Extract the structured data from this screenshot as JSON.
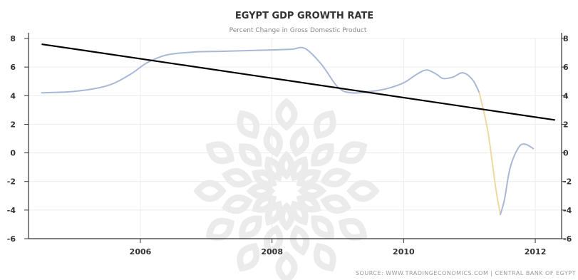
{
  "chart_data": {
    "type": "line",
    "title": "EGYPT GDP GROWTH RATE",
    "subtitle": "Percent Change in Gross Domestic Product",
    "source": "SOURCE: WWW.TRADINGECONOMICS.COM | CENTRAL BANK OF EGYPT",
    "xlim": [
      2004.3,
      2012.4
    ],
    "ylim": [
      -6,
      8
    ],
    "y_ticks": [
      8,
      6,
      4,
      2,
      0,
      -2,
      -4,
      -6
    ],
    "y_tick_labels": [
      "8",
      "6",
      "4",
      "2",
      "0",
      "-2",
      "-4",
      "-6"
    ],
    "y_tick_labels_right": [
      "8",
      "6",
      "4",
      "2",
      "0",
      "-2",
      "-4",
      "-6"
    ],
    "x_ticks": [
      2006,
      2008,
      2010,
      2012
    ],
    "x_tick_labels": [
      "2006",
      "2008",
      "2010",
      "2012"
    ],
    "grid": true,
    "series": [
      {
        "color": "#a9b8d6",
        "x": [
          2004.5,
          2005.0,
          2005.5,
          2005.85,
          2006.1,
          2006.4,
          2006.8,
          2007.2,
          2007.6,
          2008.0,
          2008.3,
          2008.5,
          2008.75,
          2009.0,
          2009.2,
          2009.5,
          2009.75,
          2010.0,
          2010.2,
          2010.35,
          2010.5,
          2010.6,
          2010.75,
          2010.9,
          2011.05,
          2011.15
        ],
        "y": [
          4.2,
          4.3,
          4.7,
          5.5,
          6.3,
          6.85,
          7.05,
          7.1,
          7.15,
          7.2,
          7.25,
          7.3,
          6.2,
          4.6,
          4.2,
          4.3,
          4.5,
          4.9,
          5.5,
          5.8,
          5.5,
          5.2,
          5.3,
          5.6,
          5.1,
          4.2
        ]
      },
      {
        "color": "#efd9a0",
        "x": [
          2011.15,
          2011.28,
          2011.4,
          2011.47
        ],
        "y": [
          4.2,
          1.5,
          -2.5,
          -4.3
        ]
      },
      {
        "color": "#a9b8d6",
        "x": [
          2011.47,
          2011.53,
          2011.62,
          2011.75,
          2011.85,
          2011.97
        ],
        "y": [
          -4.3,
          -3.3,
          -1.0,
          0.4,
          0.6,
          0.3
        ]
      }
    ],
    "trend_line": {
      "color": "#000000",
      "x": [
        2004.5,
        2012.3
      ],
      "y": [
        7.6,
        2.3
      ]
    }
  }
}
